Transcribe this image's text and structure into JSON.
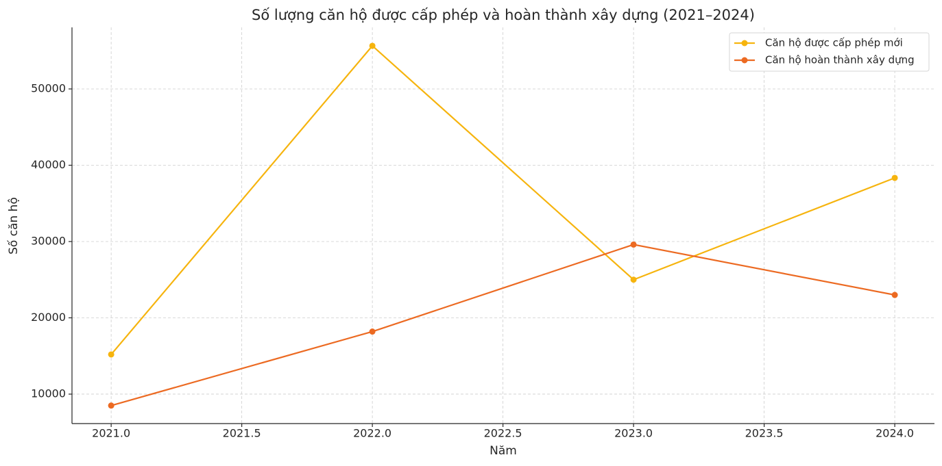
{
  "chart_data": {
    "type": "line",
    "title": "Số lượng căn hộ được cấp phép và hoàn thành xây dựng (2021–2024)",
    "x_label": "Năm",
    "y_label": "Số căn hộ",
    "x": [
      2021,
      2022,
      2023,
      2024
    ],
    "series": [
      {
        "name": "Căn hộ được cấp phép mới",
        "color": "#f6b40e",
        "values": [
          15200,
          55650,
          25000,
          38340
        ]
      },
      {
        "name": "Căn hộ hoàn thành xây dựng",
        "color": "#ec6a22",
        "values": [
          8500,
          18200,
          29600,
          23000
        ]
      }
    ],
    "xlim": [
      2020.85,
      2024.152
    ],
    "xticks": [
      {
        "value": 2021,
        "label": "2021.0"
      },
      {
        "value": 2021.5,
        "label": "2021.5"
      },
      {
        "value": 2022,
        "label": "2022.0"
      },
      {
        "value": 2022.5,
        "label": "2022.5"
      },
      {
        "value": 2023,
        "label": "2023.0"
      },
      {
        "value": 2023.5,
        "label": "2023.5"
      },
      {
        "value": 2024,
        "label": "2024.0"
      }
    ],
    "ylim": [
      6140,
      58070
    ],
    "yticks": [
      10000,
      20000,
      30000,
      40000,
      50000
    ],
    "grid": true,
    "legend": "upper right"
  }
}
